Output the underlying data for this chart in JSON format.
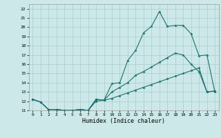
{
  "title": "",
  "xlabel": "Humidex (Indice chaleur)",
  "background_color": "#cce8e8",
  "grid_color": "#aacccc",
  "line_color": "#1a7070",
  "xlim": [
    -0.5,
    23.5
  ],
  "ylim": [
    11,
    22.5
  ],
  "xticks": [
    0,
    1,
    2,
    3,
    4,
    5,
    6,
    7,
    8,
    9,
    10,
    11,
    12,
    13,
    14,
    15,
    16,
    17,
    18,
    19,
    20,
    21,
    22,
    23
  ],
  "yticks": [
    11,
    12,
    13,
    14,
    15,
    16,
    17,
    18,
    19,
    20,
    21,
    22
  ],
  "curve1_x": [
    0,
    1,
    2,
    3,
    4,
    5,
    6,
    7,
    8,
    9,
    10,
    11,
    12,
    13,
    14,
    15,
    16,
    17,
    18,
    19,
    20,
    21,
    22,
    23
  ],
  "curve1_y": [
    12.2,
    11.9,
    11.1,
    11.1,
    11.0,
    11.0,
    11.1,
    11.0,
    12.2,
    12.1,
    13.9,
    14.0,
    16.4,
    17.5,
    19.4,
    20.1,
    21.7,
    20.1,
    20.2,
    20.2,
    19.3,
    16.9,
    17.0,
    13.0
  ],
  "curve2_x": [
    0,
    1,
    2,
    3,
    4,
    5,
    6,
    7,
    8,
    9,
    10,
    11,
    12,
    13,
    14,
    15,
    16,
    17,
    18,
    19,
    20,
    21,
    22,
    23
  ],
  "curve2_y": [
    12.2,
    11.9,
    11.1,
    11.1,
    11.0,
    11.0,
    11.1,
    11.0,
    12.2,
    12.1,
    13.0,
    13.5,
    14.0,
    14.8,
    15.2,
    15.7,
    16.2,
    16.7,
    17.2,
    17.0,
    16.0,
    15.2,
    13.0,
    13.1
  ],
  "curve3_x": [
    0,
    1,
    2,
    3,
    4,
    5,
    6,
    7,
    8,
    9,
    10,
    11,
    12,
    13,
    14,
    15,
    16,
    17,
    18,
    19,
    20,
    21,
    22,
    23
  ],
  "curve3_y": [
    12.2,
    11.9,
    11.1,
    11.1,
    11.0,
    11.0,
    11.1,
    11.0,
    12.0,
    12.1,
    12.3,
    12.6,
    12.9,
    13.2,
    13.5,
    13.8,
    14.1,
    14.4,
    14.7,
    15.0,
    15.3,
    15.6,
    13.0,
    13.1
  ]
}
